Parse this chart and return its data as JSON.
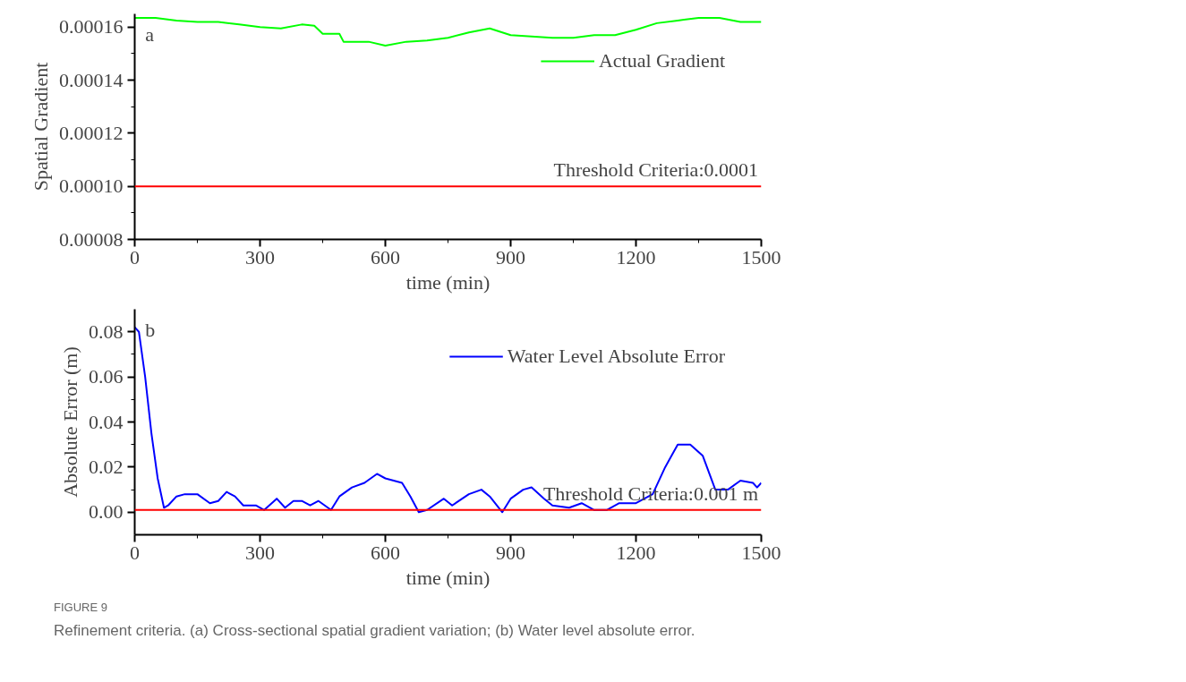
{
  "chart_data": [
    {
      "type": "line",
      "xlabel": "time (min)",
      "ylabel": "Spatial Gradient",
      "annotations": [
        "a"
      ],
      "xlim": [
        0,
        1500
      ],
      "xticks": [
        0,
        300,
        600,
        900,
        1200,
        1500
      ],
      "ylim": [
        8e-05,
        0.000165
      ],
      "yticks": [
        {
          "value": 8e-05,
          "label": "0.00008"
        },
        {
          "value": 0.0001,
          "label": "0.00010"
        },
        {
          "value": 0.00012,
          "label": "0.00012"
        },
        {
          "value": 0.00014,
          "label": "0.00014"
        },
        {
          "value": 0.00016,
          "label": "0.00016"
        }
      ],
      "grid": false,
      "legend": "top right",
      "line_style": "solid",
      "series": [
        {
          "name": "Actual Gradient",
          "color": "#00ff00",
          "x": [
            0,
            50,
            100,
            150,
            200,
            250,
            300,
            350,
            400,
            430,
            450,
            490,
            500,
            560,
            600,
            650,
            700,
            750,
            800,
            850,
            900,
            950,
            1000,
            1050,
            1100,
            1150,
            1200,
            1250,
            1300,
            1350,
            1400,
            1450,
            1500
          ],
          "values": [
            0.0001635,
            0.0001635,
            0.0001625,
            0.000162,
            0.000162,
            0.000161,
            0.00016,
            0.0001595,
            0.000161,
            0.0001605,
            0.0001575,
            0.0001575,
            0.0001545,
            0.0001545,
            0.000153,
            0.0001545,
            0.000155,
            0.000156,
            0.000158,
            0.0001595,
            0.000157,
            0.0001565,
            0.000156,
            0.000156,
            0.000157,
            0.000157,
            0.000159,
            0.0001615,
            0.0001625,
            0.0001635,
            0.0001635,
            0.000162,
            0.000162
          ]
        }
      ],
      "ref_lines": [
        {
          "axis": "y",
          "value": 0.0001,
          "label": "Threshold Criteria:0.0001",
          "color": "#ff0000"
        }
      ]
    },
    {
      "type": "line",
      "xlabel": "time (min)",
      "ylabel": "Absolute Error (m)",
      "annotations": [
        "b",
        "FIGURE 9",
        "Refinement criteria. (a) Cross-sectional spatial gradient variation; (b) Water level absolute error."
      ],
      "xlim": [
        0,
        1500
      ],
      "xticks": [
        0,
        300,
        600,
        900,
        1200,
        1500
      ],
      "ylim": [
        -0.01,
        0.09
      ],
      "yticks": [
        {
          "value": 0,
          "label": "0.00"
        },
        {
          "value": 0.02,
          "label": "0.02"
        },
        {
          "value": 0.04,
          "label": "0.04"
        },
        {
          "value": 0.06,
          "label": "0.06"
        },
        {
          "value": 0.08,
          "label": "0.08"
        }
      ],
      "grid": false,
      "legend": "top right",
      "line_style": "solid",
      "series": [
        {
          "name": "Water Level Absolute Error",
          "color": "#0000ff",
          "x": [
            0,
            10,
            25,
            40,
            55,
            70,
            80,
            100,
            120,
            150,
            180,
            200,
            220,
            240,
            260,
            290,
            310,
            340,
            360,
            380,
            400,
            420,
            440,
            470,
            490,
            520,
            550,
            580,
            600,
            640,
            660,
            680,
            700,
            740,
            760,
            800,
            830,
            850,
            880,
            900,
            930,
            950,
            980,
            1000,
            1040,
            1070,
            1100,
            1130,
            1160,
            1200,
            1240,
            1270,
            1300,
            1330,
            1360,
            1390,
            1420,
            1450,
            1480,
            1490,
            1500
          ],
          "values": [
            0.082,
            0.08,
            0.06,
            0.035,
            0.015,
            0.002,
            0.003,
            0.007,
            0.008,
            0.008,
            0.004,
            0.005,
            0.009,
            0.007,
            0.003,
            0.003,
            0.001,
            0.006,
            0.002,
            0.005,
            0.005,
            0.003,
            0.005,
            0.001,
            0.007,
            0.011,
            0.013,
            0.017,
            0.015,
            0.013,
            0.007,
            0.0,
            0.001,
            0.006,
            0.003,
            0.008,
            0.01,
            0.007,
            0.0,
            0.006,
            0.01,
            0.011,
            0.006,
            0.003,
            0.002,
            0.004,
            0.001,
            0.001,
            0.004,
            0.004,
            0.008,
            0.02,
            0.03,
            0.03,
            0.025,
            0.01,
            0.01,
            0.014,
            0.013,
            0.011,
            0.013
          ]
        }
      ],
      "ref_lines": [
        {
          "axis": "y",
          "value": 0.001,
          "label": "Threshold Criteria:0.001 m",
          "color": "#ff0000"
        }
      ]
    }
  ]
}
